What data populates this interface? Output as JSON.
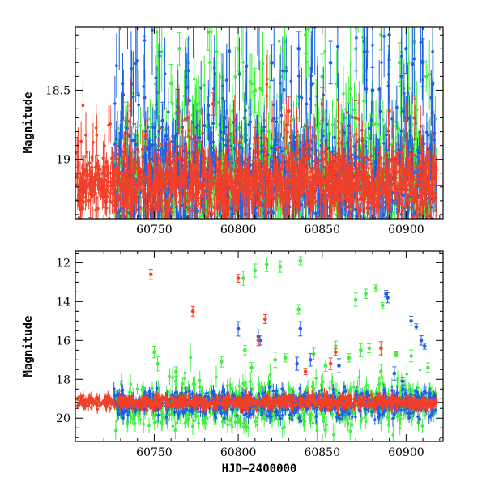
{
  "colors": {
    "red": "#f0402a",
    "green": "#3ef03e",
    "blue": "#1f5fe6",
    "frame": "#000000",
    "background": "#ffffff"
  },
  "chart_data": [
    {
      "type": "scatter",
      "panel": "top",
      "xlabel": "",
      "ylabel": "Magnitude",
      "xlim": [
        60703,
        60922
      ],
      "ylim": [
        19.43,
        18.04
      ],
      "y_inverted": true,
      "x_ticks": [
        60750,
        60800,
        60850,
        60900
      ],
      "x_tick_labels": [
        "60750",
        "60800",
        "60850",
        "60900"
      ],
      "y_ticks": [
        18.5,
        19
      ],
      "y_tick_labels": [
        "18.5",
        "19"
      ],
      "grid": false,
      "legend": "none",
      "error_bars": true,
      "reference_line": 19.19,
      "series": [
        {
          "color": "green",
          "x_range": [
            60726,
            60918
          ],
          "n_points": 1400,
          "median": 19.15,
          "scatter": 0.22,
          "envelope_start": 60725,
          "samples": [
            [
              60733,
              18.72
            ],
            [
              60740,
              18.9
            ],
            [
              60752,
              18.65
            ],
            [
              60760,
              18.45
            ],
            [
              60765,
              18.2
            ],
            [
              60770,
              18.3
            ],
            [
              60782,
              18.08
            ],
            [
              60790,
              18.4
            ],
            [
              60800,
              18.2
            ],
            [
              60810,
              18.5
            ],
            [
              60820,
              18.3
            ],
            [
              60840,
              18.1
            ],
            [
              60850,
              18.4
            ],
            [
              60870,
              18.2
            ],
            [
              60885,
              18.1
            ],
            [
              60896,
              18.3
            ],
            [
              60905,
              18.15
            ],
            [
              60912,
              18.4
            ]
          ]
        },
        {
          "color": "blue",
          "x_range": [
            60726,
            60918
          ],
          "n_points": 1400,
          "median": 19.16,
          "scatter": 0.2,
          "samples": [
            [
              60738,
              18.86
            ],
            [
              60755,
              18.72
            ],
            [
              60764,
              18.62
            ],
            [
              60792,
              18.7
            ],
            [
              60820,
              18.3
            ],
            [
              60836,
              18.2
            ],
            [
              60855,
              18.3
            ],
            [
              60880,
              18.5
            ],
            [
              60890,
              18.1
            ],
            [
              60900,
              18.2
            ],
            [
              60910,
              18.3
            ]
          ]
        },
        {
          "color": "red",
          "x_range": [
            60704,
            60918
          ],
          "n_points": 1700,
          "median": 19.18,
          "scatter": 0.1,
          "samples": [
            [
              60704,
              18.95
            ],
            [
              60708,
              19.1
            ],
            [
              60712,
              19.25
            ],
            [
              60716,
              19.05
            ],
            [
              60720,
              19.2
            ],
            [
              60728,
              19.3
            ],
            [
              60745,
              18.83
            ],
            [
              60770,
              18.7
            ],
            [
              60785,
              18.6
            ],
            [
              60810,
              18.85
            ],
            [
              60830,
              18.65
            ],
            [
              60850,
              18.6
            ],
            [
              60870,
              18.7
            ],
            [
              60890,
              18.65
            ],
            [
              60905,
              18.7
            ]
          ]
        }
      ]
    },
    {
      "type": "scatter",
      "panel": "bottom",
      "xlabel": "HJD−2400000",
      "ylabel": "Magnitude",
      "xlim": [
        60703,
        60922
      ],
      "ylim": [
        21.2,
        11.4
      ],
      "y_inverted": true,
      "x_ticks": [
        60750,
        60800,
        60850,
        60900
      ],
      "x_tick_labels": [
        "60750",
        "60800",
        "60850",
        "60900"
      ],
      "y_ticks": [
        12,
        14,
        16,
        18,
        20
      ],
      "y_tick_labels": [
        "12",
        "14",
        "16",
        "18",
        "20"
      ],
      "grid": false,
      "legend": "none",
      "error_bars": true,
      "reference_line": 19.19,
      "series": [
        {
          "color": "green",
          "x_range": [
            60726,
            60918
          ],
          "n_points": 900,
          "median": 19.3,
          "scatter": 0.55,
          "outliers": [
            [
              60803,
              12.8
            ],
            [
              60810,
              12.4
            ],
            [
              60817,
              12.1
            ],
            [
              60825,
              12.2
            ],
            [
              60837,
              11.9
            ],
            [
              60836,
              14.4
            ],
            [
              60882,
              13.3
            ],
            [
              60876,
              13.6
            ],
            [
              60886,
              14.2
            ],
            [
              60870,
              13.9
            ],
            [
              60750,
              16.6
            ],
            [
              60752,
              17.2
            ],
            [
              60763,
              17.6
            ],
            [
              60790,
              17.1
            ],
            [
              60804,
              16.5
            ],
            [
              60808,
              17.4
            ],
            [
              60822,
              17.0
            ],
            [
              60828,
              16.9
            ],
            [
              60845,
              16.7
            ],
            [
              60852,
              17.3
            ],
            [
              60858,
              16.3
            ],
            [
              60866,
              16.9
            ],
            [
              60873,
              16.5
            ],
            [
              60878,
              16.4
            ],
            [
              60894,
              16.7
            ],
            [
              60903,
              16.8
            ],
            [
              60913,
              17.4
            ],
            [
              60885,
              17.6
            ]
          ]
        },
        {
          "color": "blue",
          "x_range": [
            60726,
            60918
          ],
          "n_points": 900,
          "median": 19.25,
          "scatter": 0.3,
          "outliers": [
            [
              60800,
              15.4
            ],
            [
              60812,
              15.8
            ],
            [
              60813,
              16.0
            ],
            [
              60837,
              15.4
            ],
            [
              60888,
              13.6
            ],
            [
              60889,
              13.8
            ],
            [
              60903,
              15.0
            ],
            [
              60906,
              15.3
            ],
            [
              60909,
              16.0
            ],
            [
              60911,
              16.3
            ],
            [
              60835,
              17.2
            ],
            [
              60843,
              17.0
            ],
            [
              60860,
              17.3
            ],
            [
              60893,
              17.7
            ],
            [
              60898,
              18.1
            ]
          ]
        },
        {
          "color": "red",
          "x_range": [
            60704,
            60918
          ],
          "n_points": 1100,
          "median": 19.18,
          "scatter": 0.15,
          "outliers": [
            [
              60748,
              12.6
            ],
            [
              60773,
              14.5
            ],
            [
              60800,
              12.8
            ],
            [
              60812,
              16.0
            ],
            [
              60816,
              14.9
            ],
            [
              60858,
              16.6
            ],
            [
              60885,
              16.4
            ],
            [
              60840,
              17.6
            ],
            [
              60855,
              17.2
            ]
          ]
        }
      ]
    }
  ]
}
